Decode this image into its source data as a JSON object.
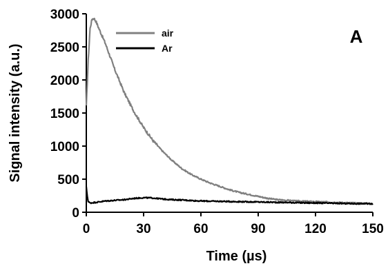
{
  "chart_data": {
    "type": "line",
    "panel_label": "A",
    "xlabel": "Time (µs)",
    "ylabel": "Signal intensity (a.u.)",
    "xlim": [
      0,
      150
    ],
    "ylim": [
      0,
      3000
    ],
    "xticks": [
      0,
      30,
      60,
      90,
      120,
      150
    ],
    "yticks": [
      0,
      500,
      1000,
      1500,
      2000,
      2500,
      3000
    ],
    "grid": false,
    "legend_position": "top-left",
    "series": [
      {
        "name": "air",
        "color": "#808080",
        "x": [
          0,
          1,
          2,
          3,
          4,
          5,
          7,
          10,
          15,
          20,
          25,
          30,
          35,
          40,
          45,
          50,
          55,
          60,
          65,
          70,
          75,
          80,
          85,
          90,
          95,
          100,
          110,
          120,
          130,
          140,
          150
        ],
        "y": [
          1600,
          2300,
          2780,
          2920,
          2930,
          2890,
          2750,
          2550,
          2150,
          1800,
          1520,
          1280,
          1080,
          920,
          780,
          660,
          570,
          500,
          440,
          390,
          340,
          300,
          270,
          240,
          210,
          190,
          170,
          160,
          150,
          140,
          130
        ]
      },
      {
        "name": "Ar",
        "color": "#000000",
        "x": [
          0,
          0.5,
          1,
          2,
          5,
          10,
          15,
          20,
          25,
          30,
          35,
          40,
          45,
          50,
          60,
          70,
          80,
          90,
          100,
          110,
          120,
          130,
          140,
          150
        ],
        "y": [
          380,
          250,
          160,
          140,
          150,
          170,
          180,
          190,
          210,
          220,
          215,
          200,
          190,
          185,
          170,
          165,
          160,
          155,
          150,
          145,
          140,
          135,
          130,
          130
        ]
      }
    ]
  }
}
